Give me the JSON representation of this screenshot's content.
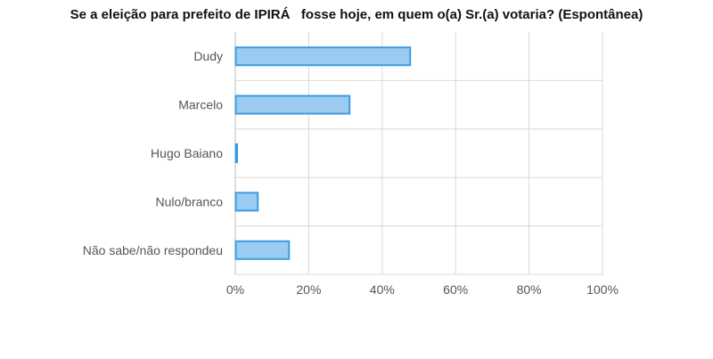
{
  "chart_data": {
    "type": "bar",
    "orientation": "horizontal",
    "title": "Se a eleição para prefeito de IPIRÁ   fosse hoje, em quem o(a) Sr.(a) votaria? (Espontânea)",
    "categories": [
      "Dudy",
      "Marcelo",
      "Hugo Baiano",
      "Nulo/branco",
      "Não sabe/não respondeu"
    ],
    "values": [
      47.5,
      31.0,
      0.3,
      6.0,
      14.5
    ],
    "unit": "%",
    "xlim": [
      0,
      100
    ],
    "x_ticks": [
      0,
      20,
      40,
      60,
      80,
      100
    ],
    "x_tick_labels": [
      "0%",
      "20%",
      "40%",
      "60%",
      "80%",
      "100%"
    ],
    "grid": true,
    "legend": "none",
    "colors": {
      "bar_fill": "#9ccbf1",
      "bar_stroke": "#3d9ce0",
      "grid": "#d9d9d9",
      "text": "#555555"
    }
  }
}
